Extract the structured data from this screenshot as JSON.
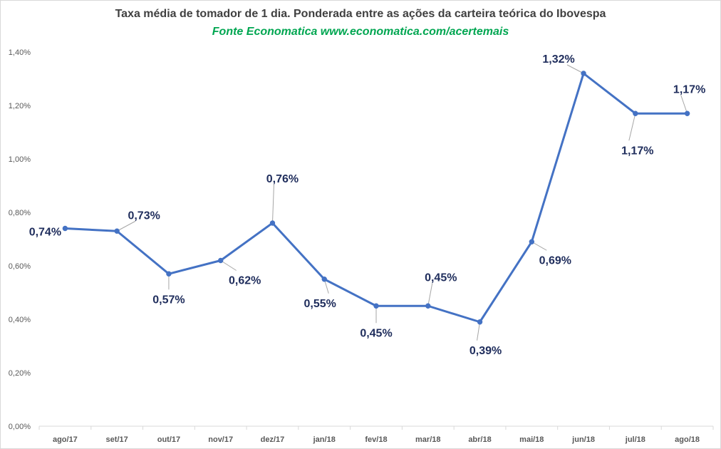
{
  "chart_data": {
    "type": "line",
    "title": "Taxa média de tomador de 1 dia. Ponderada entre as ações da carteira teórica do Ibovespa",
    "subtitle": "Fonte Economatica www.economatica.com/acertemais",
    "categories": [
      "ago/17",
      "set/17",
      "out/17",
      "nov/17",
      "dez/17",
      "jan/18",
      "fev/18",
      "mar/18",
      "abr/18",
      "mai/18",
      "jun/18",
      "jul/18",
      "ago/18"
    ],
    "series": [
      {
        "values": [
          0.74,
          0.73,
          0.57,
          0.62,
          0.76,
          0.55,
          0.45,
          0.45,
          0.39,
          0.69,
          1.32,
          1.17,
          1.17
        ]
      }
    ],
    "data_labels": [
      "0,74%",
      "0,73%",
      "0,57%",
      "0,62%",
      "0,76%",
      "0,55%",
      "0,45%",
      "0,45%",
      "0,39%",
      "0,69%",
      "1,32%",
      "1,17%",
      "1,17%"
    ],
    "yticks": [
      "0,00%",
      "0,20%",
      "0,40%",
      "0,60%",
      "0,80%",
      "1,00%",
      "1,20%",
      "1,40%"
    ],
    "ylim": [
      0,
      1.4
    ],
    "xlabel": "",
    "ylabel": "",
    "grid": false,
    "legend": "none",
    "colors": {
      "line": "#4472c4",
      "label": "#1f2d5c",
      "leader": "#a6a6a6",
      "axis": "#d9d9d9",
      "title": "#404040",
      "subtitle": "#00a651"
    }
  }
}
